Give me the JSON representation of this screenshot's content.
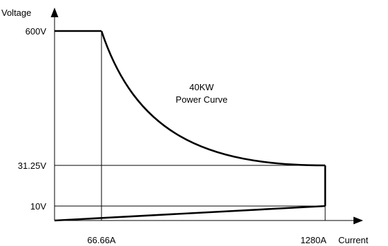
{
  "chart_data": {
    "type": "line",
    "title": "",
    "xlabel": "Current",
    "ylabel": "Voltage",
    "annotation": [
      "40KW",
      "Power Curve"
    ],
    "y_tick_labels": [
      "600V",
      "31.25V",
      "10V"
    ],
    "x_tick_labels": [
      "66.66A",
      "1280A"
    ],
    "y_ticks": [
      600,
      31.25,
      10
    ],
    "x_ticks": [
      66.66,
      1280
    ],
    "power_w": 40000,
    "series": [
      {
        "points": [
          [
            0,
            600
          ],
          [
            66.66,
            600
          ],
          [
            1280,
            31.25
          ],
          [
            1280,
            10
          ],
          [
            0,
            0
          ]
        ]
      }
    ],
    "grid": false
  }
}
